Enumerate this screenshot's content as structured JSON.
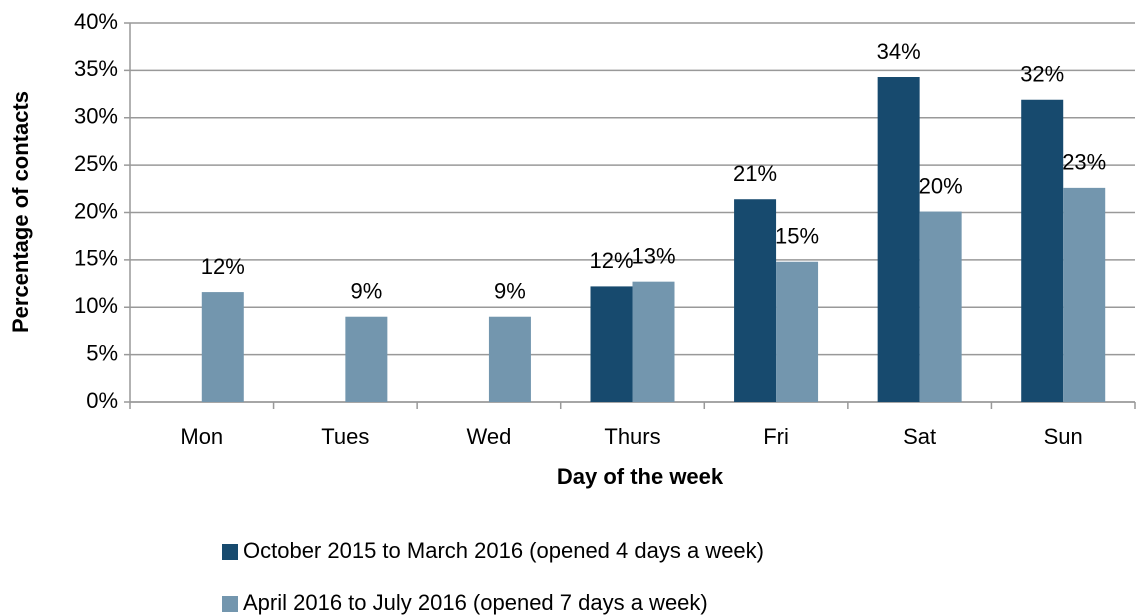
{
  "chart_data": {
    "type": "bar",
    "x_label": "Day of the week",
    "y_label": "Percentage of contacts",
    "categories": [
      "Mon",
      "Tues",
      "Wed",
      "Thurs",
      "Fri",
      "Sat",
      "Sun"
    ],
    "series": [
      {
        "name": "October 2015 to March 2016 (opened 4 days a week)",
        "color": "#174a6e",
        "values": [
          null,
          null,
          null,
          12.2,
          21.4,
          34.3,
          31.9
        ],
        "value_labels": [
          null,
          null,
          null,
          "12%",
          "21%",
          "34%",
          "32%"
        ]
      },
      {
        "name": "April 2016 to July 2016 (opened 7 days a week)",
        "color": "#7396ae",
        "values": [
          11.6,
          9,
          9,
          12.7,
          14.8,
          20.1,
          22.6
        ],
        "value_labels": [
          "12%",
          "9%",
          "9%",
          "13%",
          "15%",
          "20%",
          "23%"
        ]
      }
    ],
    "ylim": [
      0,
      40
    ],
    "yticks": [
      {
        "value": 0,
        "label": "0%"
      },
      {
        "value": 5,
        "label": "5%"
      },
      {
        "value": 10,
        "label": "10%"
      },
      {
        "value": 15,
        "label": "15%"
      },
      {
        "value": 20,
        "label": "20%"
      },
      {
        "value": 25,
        "label": "25%"
      },
      {
        "value": 30,
        "label": "30%"
      },
      {
        "value": 35,
        "label": "35%"
      },
      {
        "value": 40,
        "label": "40%"
      }
    ],
    "grid": true
  }
}
